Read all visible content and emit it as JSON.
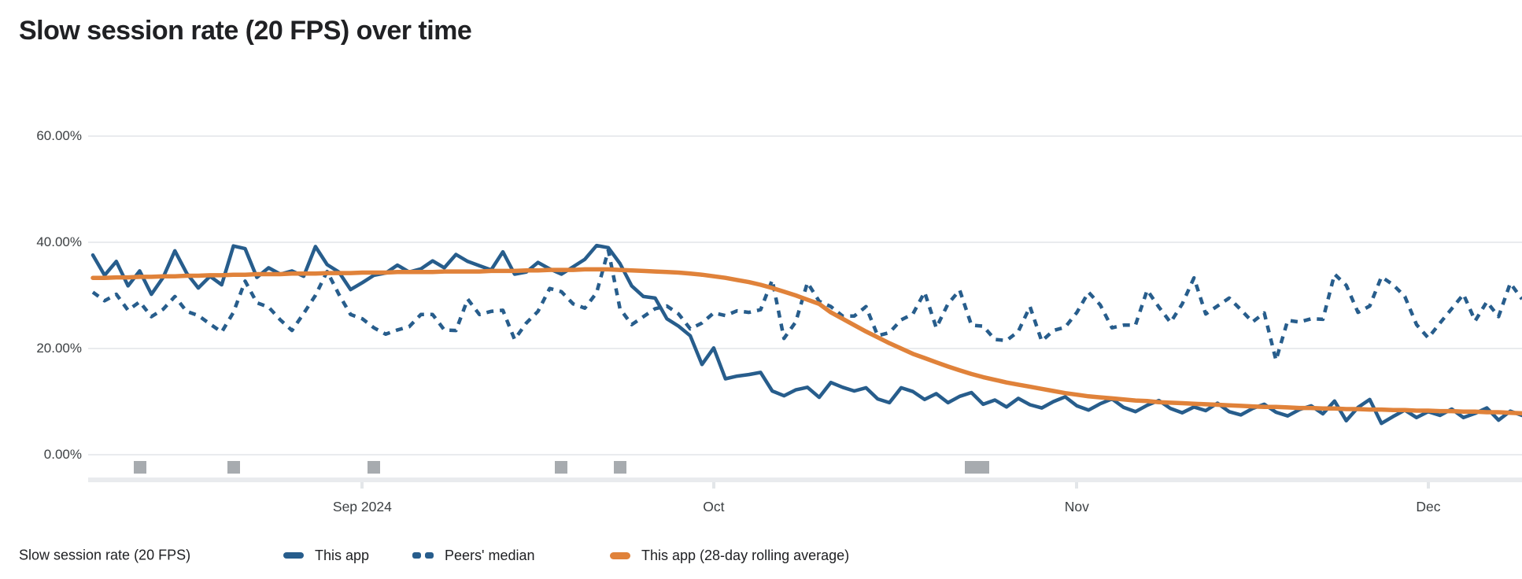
{
  "title": "Slow session rate (20 FPS) over time",
  "legend": {
    "axis_title": "Slow session rate (20 FPS)",
    "items": [
      {
        "label": "This app",
        "style": "solid",
        "color": "#275d8c"
      },
      {
        "label": "Peers' median",
        "style": "dashed",
        "color": "#275d8c"
      },
      {
        "label": "This app (28-day rolling average)",
        "style": "solid",
        "color": "#e0823a"
      }
    ]
  },
  "chart_data": {
    "type": "line",
    "title": "Slow session rate (20 FPS) over time",
    "xlabel": "",
    "ylabel": "Slow session rate (20 FPS)",
    "x_unit": "day_index",
    "x_range": [
      0,
      122
    ],
    "ylim": [
      0,
      60
    ],
    "grid": "horizontal",
    "legend_position": "bottom",
    "y_ticks": [
      {
        "value": 60,
        "label": "60.00%"
      },
      {
        "value": 40,
        "label": "40.00%"
      },
      {
        "value": 20,
        "label": "20.00%"
      },
      {
        "value": 0,
        "label": "0.00%"
      }
    ],
    "month_ticks": [
      {
        "label": "Sep 2024",
        "day": 23
      },
      {
        "label": "Oct",
        "day": 53
      },
      {
        "label": "Nov",
        "day": 84
      },
      {
        "label": "Dec",
        "day": 114
      }
    ],
    "release_markers": {
      "color": "#a7abaf",
      "days": [
        4,
        12,
        24,
        40,
        45,
        75,
        76
      ]
    },
    "series": [
      {
        "name": "This app",
        "style": "solid",
        "color": "#275d8c",
        "width": 4.5,
        "values": [
          37.6,
          33.8,
          36.4,
          31.8,
          34.6,
          30.2,
          33.4,
          38.4,
          34.2,
          31.4,
          33.6,
          32.0,
          39.3,
          38.8,
          33.4,
          35.2,
          34.0,
          34.6,
          33.6,
          39.2,
          35.8,
          34.4,
          31.1,
          32.4,
          33.8,
          34.2,
          35.7,
          34.4,
          35.0,
          36.5,
          35.2,
          37.7,
          36.4,
          35.6,
          34.8,
          38.2,
          34.0,
          34.4,
          36.2,
          35.0,
          34.0,
          35.4,
          36.8,
          39.4,
          39.0,
          36.0,
          31.8,
          29.8,
          29.5,
          25.6,
          24.2,
          22.4,
          17.0,
          20.1,
          14.3,
          14.8,
          15.1,
          15.5,
          12.0,
          11.1,
          12.2,
          12.7,
          10.8,
          13.6,
          12.7,
          12.0,
          12.6,
          10.5,
          9.8,
          12.6,
          11.9,
          10.4,
          11.5,
          9.8,
          11.0,
          11.7,
          9.5,
          10.3,
          9.0,
          10.6,
          9.4,
          8.8,
          10.0,
          10.9,
          9.2,
          8.4,
          9.6,
          10.5,
          8.9,
          8.1,
          9.3,
          10.2,
          8.7,
          7.9,
          9.0,
          8.3,
          9.7,
          8.1,
          7.5,
          8.7,
          9.5,
          8.0,
          7.3,
          8.5,
          9.2,
          7.7,
          10.1,
          6.4,
          8.9,
          10.4,
          5.9,
          7.2,
          8.4,
          7.0,
          8.1,
          7.4,
          8.6,
          7.0,
          7.8,
          8.8,
          6.5,
          8.2,
          7.4
        ]
      },
      {
        "name": "Peers' median",
        "style": "dashed",
        "color": "#275d8c",
        "width": 4.5,
        "values": [
          30.6,
          29.0,
          30.2,
          27.2,
          28.8,
          26.0,
          27.4,
          29.8,
          27.0,
          26.2,
          24.6,
          23.1,
          26.8,
          32.7,
          28.6,
          27.8,
          25.4,
          23.4,
          26.6,
          30.0,
          34.5,
          30.2,
          26.4,
          25.6,
          23.9,
          22.7,
          23.5,
          24.1,
          26.4,
          26.4,
          23.5,
          23.4,
          29.3,
          26.4,
          27.0,
          27.2,
          21.7,
          24.8,
          27.0,
          31.3,
          30.7,
          28.4,
          27.6,
          30.5,
          38.5,
          27.5,
          24.5,
          26.0,
          27.5,
          28.0,
          26.5,
          23.7,
          24.8,
          26.7,
          26.2,
          27.1,
          26.8,
          27.3,
          32.9,
          21.9,
          25.0,
          32.4,
          28.9,
          27.9,
          26.1,
          26.1,
          27.9,
          22.4,
          23.0,
          25.4,
          26.5,
          30.6,
          23.9,
          28.4,
          31.0,
          24.4,
          24.2,
          21.7,
          21.5,
          23.2,
          27.9,
          21.4,
          23.4,
          24.0,
          26.8,
          30.6,
          28.2,
          23.9,
          24.4,
          24.4,
          31.0,
          27.8,
          24.9,
          28.4,
          33.3,
          26.5,
          28.0,
          29.5,
          27.3,
          25.0,
          26.7,
          17.8,
          25.3,
          25.0,
          25.6,
          25.5,
          34.0,
          31.9,
          26.8,
          28.0,
          33.5,
          32.0,
          29.8,
          24.5,
          22.0,
          24.8,
          27.5,
          30.2,
          25.2,
          28.8,
          26.0,
          32.3,
          29.3
        ]
      },
      {
        "name": "This app (28-day rolling average)",
        "style": "solid",
        "color": "#e0823a",
        "width": 5.5,
        "values": [
          33.3,
          33.3,
          33.4,
          33.4,
          33.5,
          33.5,
          33.6,
          33.6,
          33.7,
          33.7,
          33.8,
          33.8,
          33.9,
          33.9,
          34.0,
          34.0,
          34.0,
          34.1,
          34.1,
          34.1,
          34.2,
          34.2,
          34.2,
          34.3,
          34.3,
          34.3,
          34.4,
          34.4,
          34.4,
          34.4,
          34.5,
          34.5,
          34.5,
          34.5,
          34.6,
          34.6,
          34.6,
          34.7,
          34.7,
          34.8,
          34.8,
          34.8,
          34.9,
          34.9,
          34.9,
          34.8,
          34.7,
          34.6,
          34.5,
          34.4,
          34.3,
          34.1,
          33.9,
          33.6,
          33.3,
          32.9,
          32.5,
          32.0,
          31.4,
          30.7,
          30.0,
          29.2,
          28.4,
          26.8,
          25.6,
          24.4,
          23.2,
          22.1,
          21.0,
          20.0,
          19.0,
          18.2,
          17.4,
          16.6,
          15.9,
          15.2,
          14.6,
          14.1,
          13.6,
          13.2,
          12.8,
          12.4,
          12.0,
          11.6,
          11.3,
          11.0,
          10.8,
          10.6,
          10.4,
          10.2,
          10.1,
          9.9,
          9.8,
          9.7,
          9.6,
          9.5,
          9.4,
          9.3,
          9.2,
          9.1,
          9.0,
          9.0,
          8.9,
          8.8,
          8.8,
          8.7,
          8.7,
          8.6,
          8.6,
          8.5,
          8.5,
          8.4,
          8.4,
          8.3,
          8.3,
          8.2,
          8.2,
          8.1,
          8.1,
          8.0,
          8.0,
          7.9,
          7.8
        ]
      }
    ]
  }
}
